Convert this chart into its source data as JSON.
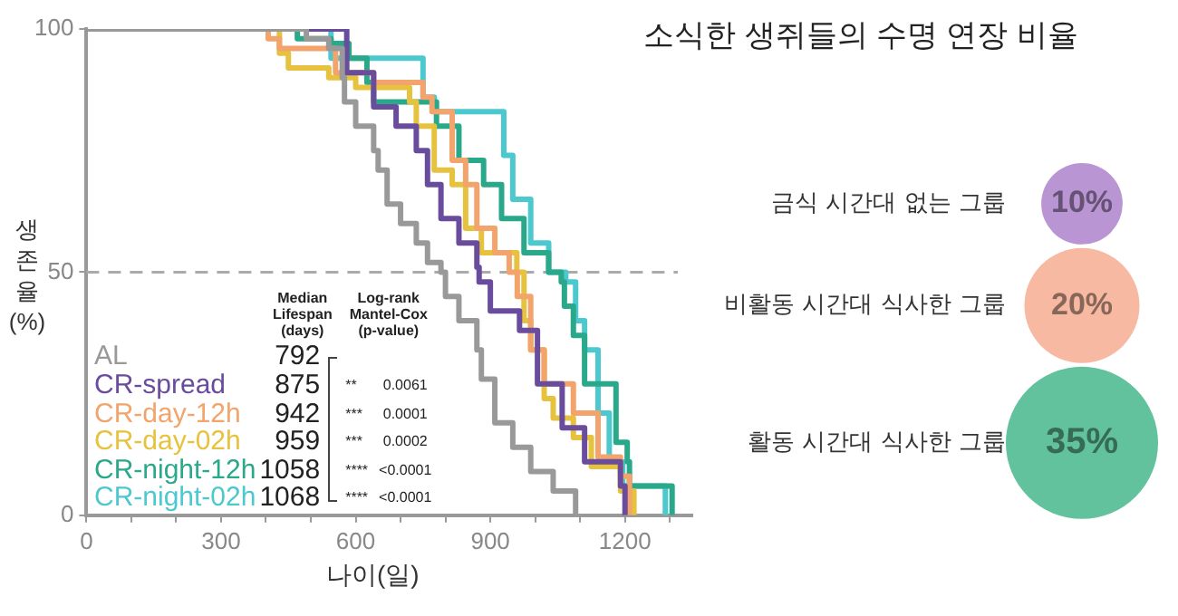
{
  "chart_data": [
    {
      "type": "step",
      "xlabel": "나이(일)",
      "ylabel": "생존율(%)",
      "xlim": [
        0,
        1350
      ],
      "ylim": [
        0,
        100
      ],
      "xticks": [
        0,
        {
          "value": 100,
          "label": null
        },
        {
          "value": 200,
          "label": null
        },
        300,
        {
          "value": 400,
          "label": null
        },
        {
          "value": 500,
          "label": null
        },
        600,
        {
          "value": 700,
          "label": null
        },
        {
          "value": 800,
          "label": null
        },
        900,
        {
          "value": 1000,
          "label": null
        },
        {
          "value": 1100,
          "label": null
        },
        1200,
        {
          "value": 1300,
          "label": null
        }
      ],
      "yticks": [
        0,
        50,
        100
      ],
      "grid": false,
      "legend": "bottom left",
      "ref_lines": [
        {
          "axis": "y",
          "value": 50,
          "color": "#aaaaaa",
          "line_style": "dashed"
        }
      ],
      "annotations": [
        "Median Lifespan (days)",
        "Log-rank Mantel-Cox (p-value)",
        "792",
        "875",
        "942",
        "959",
        "1058",
        "1068",
        "**",
        "0.0061",
        "***",
        "0.0001",
        "***",
        "0.0002",
        "****",
        "<0.0001",
        "****",
        "<0.0001"
      ],
      "series": [
        {
          "name": "AL",
          "color": "#999999",
          "x": [
            0,
            470,
            490,
            540,
            570,
            575,
            600,
            640,
            650,
            670,
            700,
            735,
            760,
            790,
            800,
            830,
            870,
            880,
            910,
            950,
            990,
            1040,
            1090
          ],
          "values": [
            100,
            100,
            98,
            96,
            90,
            85,
            80,
            75,
            71,
            64,
            60,
            56,
            52,
            50,
            45,
            40,
            34,
            28,
            19,
            14,
            9,
            5,
            0
          ]
        },
        {
          "name": "CR-spread",
          "color": "#6a4c9c",
          "x": [
            0,
            575,
            580,
            640,
            690,
            735,
            760,
            790,
            830,
            870,
            875,
            900,
            965,
            1005,
            1060,
            1110,
            1190,
            1200
          ],
          "values": [
            100,
            100,
            91,
            84,
            80,
            75,
            68,
            61,
            56,
            51,
            48,
            42,
            38,
            27,
            18,
            11,
            6,
            0
          ]
        },
        {
          "name": "CR-day-12h",
          "color": "#f2a46c",
          "x": [
            0,
            400,
            405,
            430,
            555,
            640,
            750,
            770,
            815,
            845,
            870,
            910,
            942,
            960,
            990,
            1020,
            1085,
            1140,
            1190,
            1210
          ],
          "values": [
            100,
            100,
            98,
            96,
            91,
            89,
            86,
            83,
            73,
            68,
            59,
            54,
            50,
            45,
            34,
            27,
            21,
            12,
            8,
            0
          ]
        },
        {
          "name": "CR-day-02h",
          "color": "#e6c23e",
          "x": [
            0,
            425,
            430,
            450,
            540,
            600,
            720,
            735,
            775,
            815,
            845,
            880,
            959,
            975,
            990,
            1020,
            1040,
            1085,
            1125,
            1190,
            1220
          ],
          "values": [
            100,
            100,
            95,
            92,
            90,
            88,
            85,
            80,
            71,
            68,
            59,
            54,
            50,
            40,
            34,
            24,
            20,
            16,
            10,
            5,
            0
          ]
        },
        {
          "name": "CR-night-12h",
          "color": "#2aa88a",
          "x": [
            0,
            465,
            470,
            545,
            585,
            625,
            640,
            780,
            830,
            885,
            925,
            975,
            1030,
            1058,
            1065,
            1085,
            1110,
            1180,
            1205,
            1210,
            1305
          ],
          "values": [
            100,
            100,
            98,
            97,
            94,
            89,
            85,
            80,
            73,
            68,
            61,
            54,
            50,
            48,
            43,
            37,
            27,
            15,
            11,
            6,
            0
          ]
        },
        {
          "name": "CR-night-02h",
          "color": "#4cc8cf",
          "x": [
            0,
            540,
            545,
            750,
            775,
            930,
            950,
            990,
            1030,
            1068,
            1090,
            1110,
            1140,
            1165,
            1195,
            1290
          ],
          "values": [
            100,
            100,
            94,
            86,
            83,
            74,
            65,
            56,
            50,
            48,
            40,
            34,
            21,
            11,
            6,
            0
          ]
        }
      ]
    },
    {
      "type": "other",
      "title": "소식한 생쥐들의 수명 연장 비율",
      "categories": [
        "금식 시간대 없는 그룹",
        "비활동 시간대 식사한 그룹",
        "활동 시간대 식사한 그룹"
      ],
      "values": [
        10,
        20,
        35
      ],
      "colors": [
        "#b995d3",
        "#f7b9a2",
        "#62c29e"
      ],
      "value_labels": [
        "10%",
        "20%",
        "35%"
      ]
    }
  ]
}
